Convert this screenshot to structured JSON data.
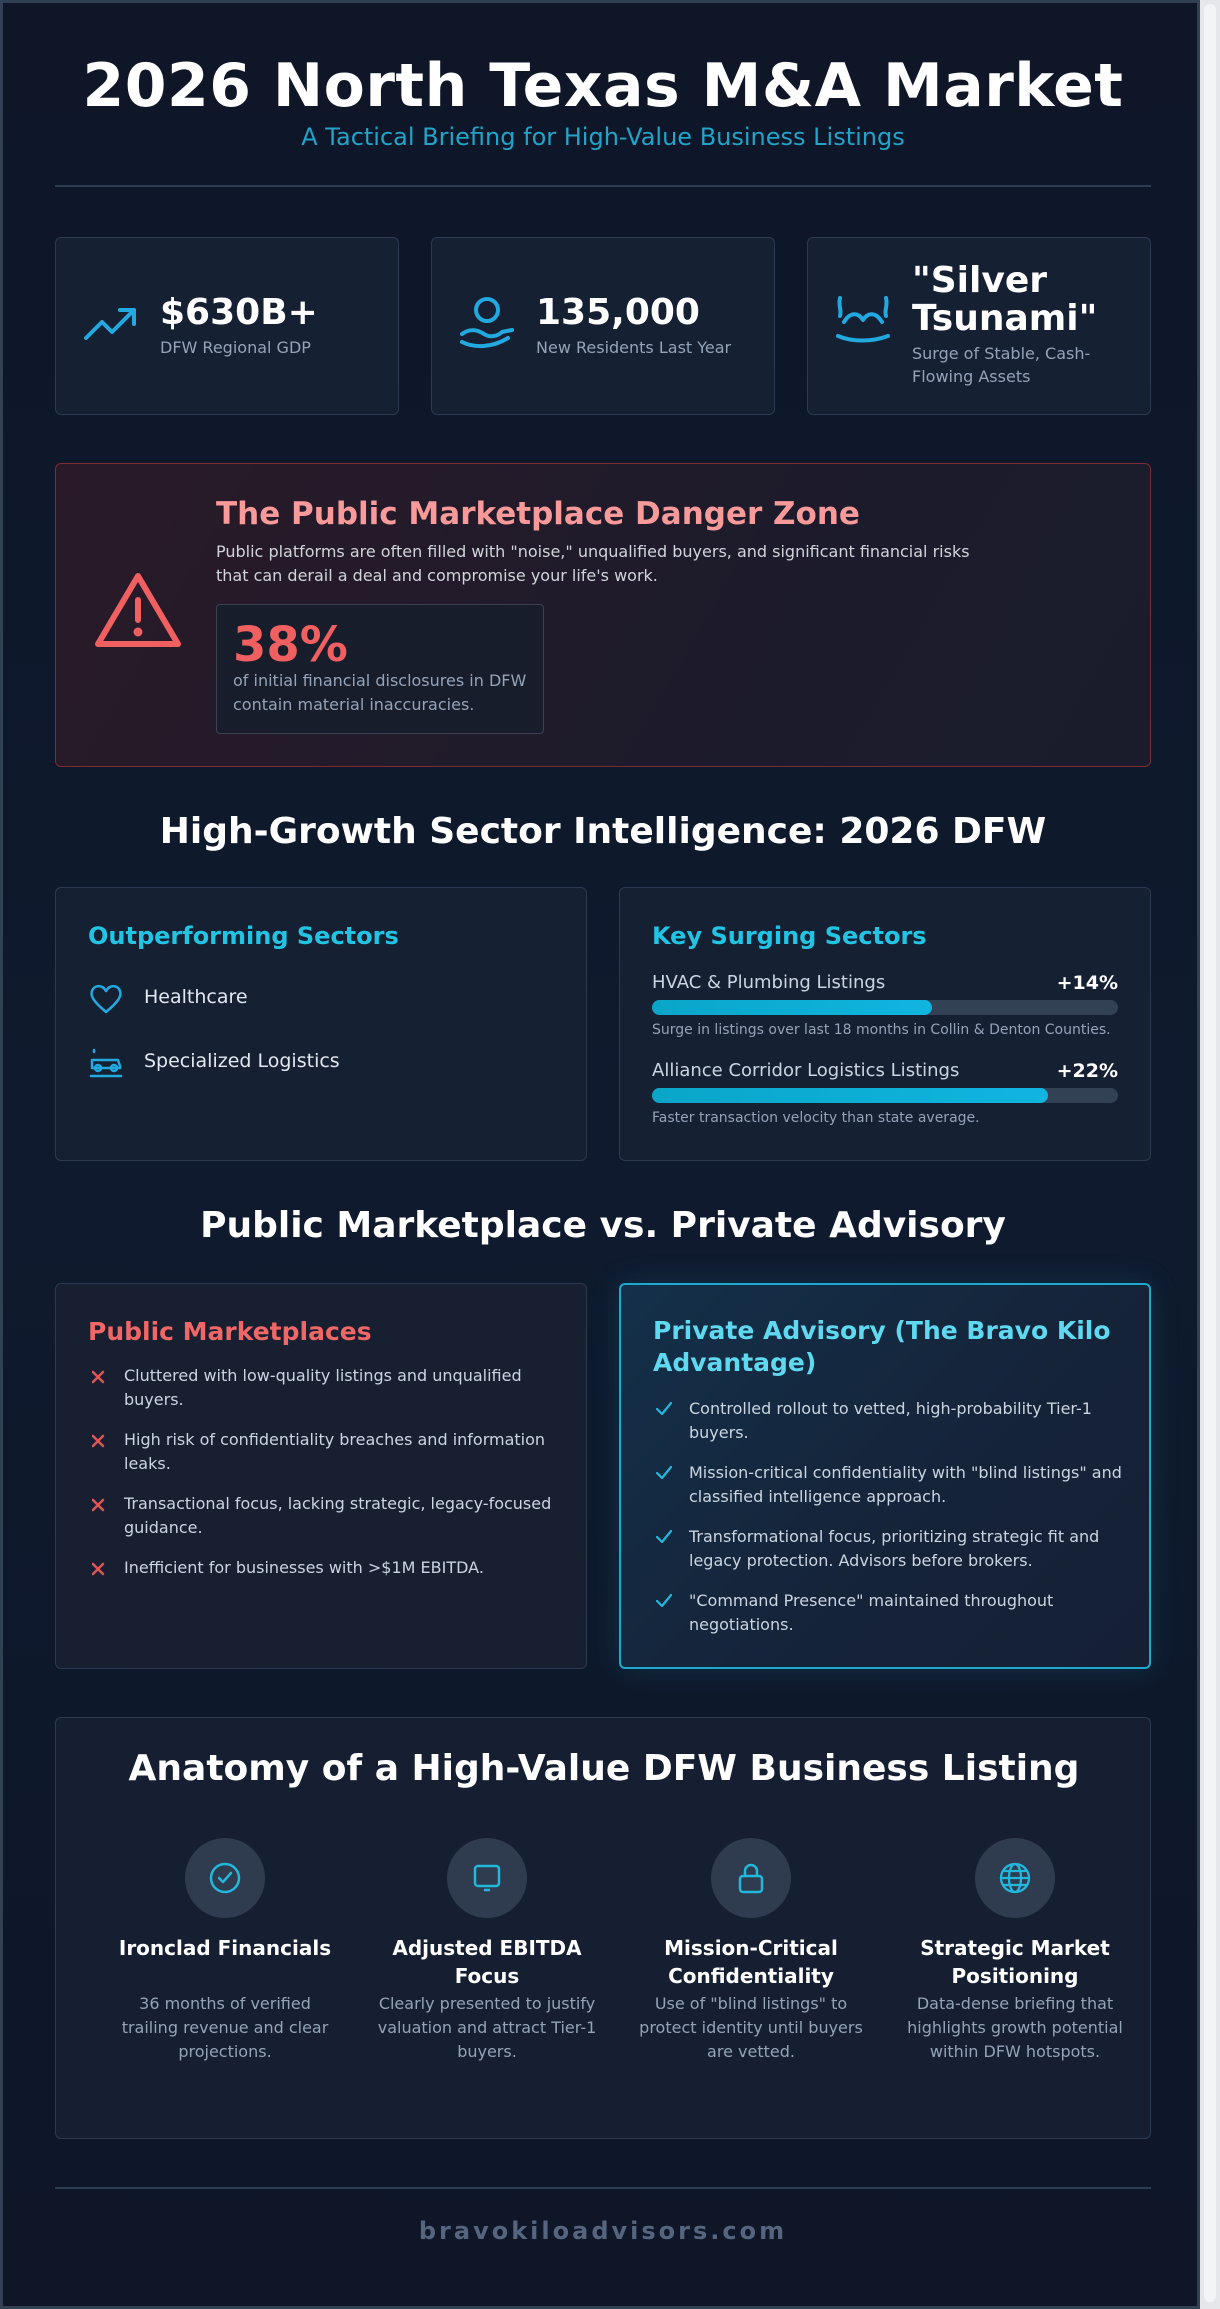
{
  "header": {
    "title": "2026 North Texas M&A Market",
    "subtitle": "A Tactical Briefing for High-Value Business Listings"
  },
  "stats": [
    {
      "value": "$630B+",
      "label": "DFW Regional GDP",
      "icon": "trending-up-icon"
    },
    {
      "value": "135,000",
      "label": "New Residents Last Year",
      "icon": "user-hand-icon"
    },
    {
      "value": "\"Silver Tsunami\"",
      "label": "Surge of Stable, Cash-Flowing Assets",
      "icon": "wave-icon"
    }
  ],
  "danger": {
    "title": "The Public Marketplace Danger Zone",
    "text": "Public platforms are often filled with \"noise,\" unqualified buyers, and significant financial risks that can derail a deal and compromise your life's work.",
    "percent": "38%",
    "note": "of initial financial disclosures in DFW contain material inaccuracies."
  },
  "sectors": {
    "section_title": "High-Growth Sector Intelligence: 2026 DFW",
    "outperforming": {
      "title": "Outperforming Sectors",
      "items": [
        "Healthcare",
        "Specialized Logistics"
      ]
    },
    "surging": {
      "title": "Key Surging Sectors",
      "bars": [
        {
          "label": "HVAC & Plumbing Listings",
          "pct": "+14%",
          "fill": 0.6,
          "note": "Surge in listings over last 18 months in Collin & Denton Counties."
        },
        {
          "label": "Alliance Corridor Logistics Listings",
          "pct": "+22%",
          "fill": 0.85,
          "note": "Faster transaction velocity than state average."
        }
      ]
    }
  },
  "comparison": {
    "section_title": "Public Marketplace vs. Private Advisory",
    "public": {
      "title": "Public Marketplaces",
      "items": [
        "Cluttered with low-quality listings and unqualified buyers.",
        "High risk of confidentiality breaches and information leaks.",
        "Transactional focus, lacking strategic, legacy-focused guidance.",
        "Inefficient for businesses with >$1M EBITDA."
      ]
    },
    "private": {
      "title": "Private Advisory (The Bravo Kilo Advantage)",
      "items": [
        "Controlled rollout to vetted, high-probability Tier-1 buyers.",
        "Mission-critical confidentiality with \"blind listings\" and classified intelligence approach.",
        "Transformational focus, prioritizing strategic fit and legacy protection. Advisors before brokers.",
        "\"Command Presence\" maintained throughout negotiations."
      ]
    }
  },
  "anatomy": {
    "title": "Anatomy of a High-Value DFW Business Listing",
    "items": [
      {
        "head": "Ironclad Financials",
        "desc": "36 months of verified trailing revenue and clear projections.",
        "icon": "check-circle-icon"
      },
      {
        "head": "Adjusted EBITDA Focus",
        "desc": "Clearly presented to justify valuation and attract Tier-1 buyers.",
        "icon": "tablet-icon"
      },
      {
        "head": "Mission-Critical Confidentiality",
        "desc": "Use of \"blind listings\" to protect identity until buyers are vetted.",
        "icon": "lock-icon"
      },
      {
        "head": "Strategic Market Positioning",
        "desc": "Data-dense briefing that highlights growth potential within DFW hotspots.",
        "icon": "globe-icon"
      }
    ]
  },
  "footer": {
    "site": "bravokiloadvisors.com"
  },
  "colors": {
    "accent": "#22c4e4",
    "danger": "#f06060",
    "background": "#0f172a"
  }
}
